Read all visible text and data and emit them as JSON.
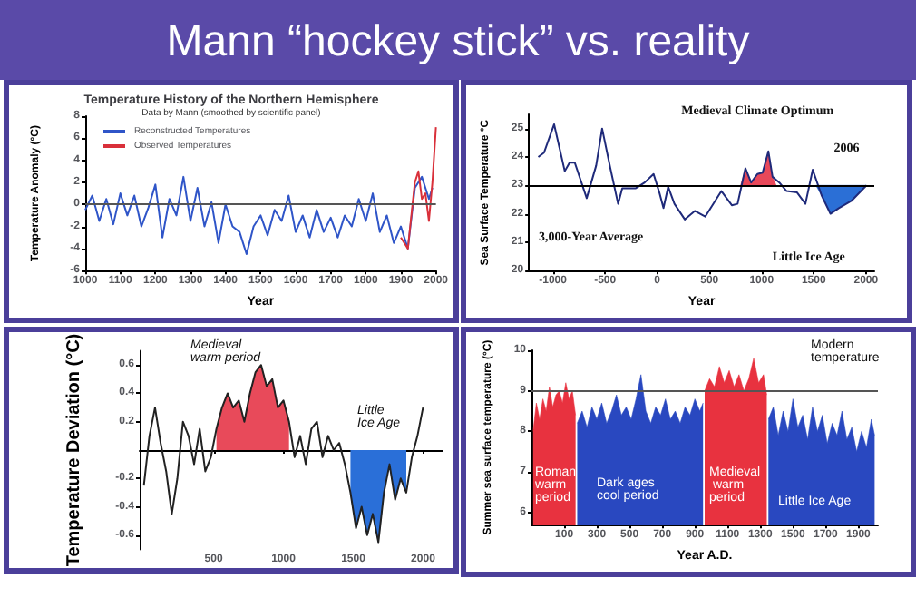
{
  "chart_data": [
    {
      "type": "other",
      "title": "Mann “hockey stick” vs. reality"
    },
    {
      "type": "line",
      "title": "Temperature History of the Northern Hemisphere",
      "subtitle": "Data by Mann (smoothed by scientific panel)",
      "xlabel": "Year",
      "ylabel": "Temperature Anomaly (°C)",
      "legend": "top left",
      "xlim": [
        1000,
        2000
      ],
      "xticks": [
        1000,
        1100,
        1200,
        1300,
        1400,
        1500,
        1600,
        1700,
        1800,
        1900,
        2000
      ],
      "ylim": [
        -6,
        8
      ],
      "yticks": [
        -6,
        -4,
        -2,
        0,
        2,
        4,
        6,
        8
      ],
      "ref_lines": [
        {
          "axis": "y",
          "value": 0,
          "color": "#555555"
        }
      ],
      "series": [
        {
          "name": "Reconstructed Temperatures",
          "color": "#2f55c8",
          "x": [
            1000,
            1020,
            1040,
            1060,
            1080,
            1100,
            1120,
            1140,
            1160,
            1180,
            1200,
            1220,
            1240,
            1260,
            1280,
            1300,
            1320,
            1340,
            1360,
            1380,
            1400,
            1420,
            1440,
            1460,
            1480,
            1500,
            1520,
            1540,
            1560,
            1580,
            1600,
            1620,
            1640,
            1660,
            1680,
            1700,
            1720,
            1740,
            1760,
            1780,
            1800,
            1820,
            1840,
            1860,
            1880,
            1900,
            1920,
            1940,
            1960,
            1980,
            1990
          ],
          "values": [
            -0.5,
            0.8,
            -1.5,
            0.5,
            -1.8,
            1,
            -1,
            0.8,
            -2,
            -0.3,
            1.8,
            -3,
            0.5,
            -1,
            2.5,
            -1.5,
            1.5,
            -2,
            0.2,
            -3.5,
            0,
            -2,
            -2.5,
            -4.5,
            -2,
            -1,
            -2.8,
            -0.5,
            -1.5,
            0.8,
            -2.5,
            -1,
            -3,
            -0.5,
            -2.5,
            -1.2,
            -3,
            -1,
            -2,
            0.5,
            -1.5,
            1,
            -2.5,
            -1,
            -3.5,
            -2,
            -4,
            1.5,
            2.5,
            0.5,
            1.5
          ]
        },
        {
          "name": "Observed Temperatures",
          "color": "#d9303a",
          "x": [
            1900,
            1920,
            1940,
            1950,
            1960,
            1970,
            1980,
            1990,
            2000
          ],
          "values": [
            -3,
            -4,
            2,
            3,
            0.5,
            1,
            -1.5,
            2,
            7
          ]
        }
      ]
    },
    {
      "type": "line",
      "xlabel": "Year",
      "ylabel": "Sea Surface Temperature °C",
      "xlim": [
        -1230,
        2080
      ],
      "xticks": [
        -1000,
        -500,
        0,
        500,
        1000,
        1500,
        2000
      ],
      "ylim": [
        20,
        25.5
      ],
      "yticks": [
        20,
        21,
        22,
        23,
        24,
        25
      ],
      "ref_lines": [
        {
          "axis": "y",
          "value": 23,
          "label": "3,000-Year Average",
          "color": "#000000"
        }
      ],
      "annotations": [
        {
          "text": "Medieval Climate Optimum",
          "x": 1065,
          "y": 24.2
        },
        {
          "text": "Little Ice Age",
          "x": 1660,
          "y": 22.0
        },
        {
          "text": "2006",
          "x": 2006,
          "y": 23
        }
      ],
      "series": [
        {
          "type": "area",
          "color": "#e8485a",
          "x": [
            800,
            845,
            900,
            960,
            1010,
            1065,
            1105,
            1140
          ],
          "values": [
            23,
            23.6,
            23.1,
            23.4,
            23.45,
            24.2,
            23.3,
            23.0
          ]
        },
        {
          "type": "area",
          "color": "#2b6fd6",
          "x": [
            1520,
            1575,
            1660,
            1740,
            1860,
            2006
          ],
          "values": [
            23.0,
            22.65,
            22.0,
            22.2,
            22.45,
            23
          ]
        },
        {
          "type": "line",
          "color": "#1f2a7a",
          "x": [
            -1140,
            -1085,
            -988,
            -886,
            -840,
            -790,
            -676,
            -585,
            -528,
            -449,
            -375,
            -335,
            -205,
            -120,
            -35,
            20,
            60,
            105,
            165,
            265,
            360,
            460,
            615,
            715,
            770,
            845,
            900,
            960,
            1010,
            1065,
            1105,
            1170,
            1240,
            1340,
            1420,
            1490,
            1575,
            1660,
            1740,
            1860,
            2006
          ],
          "values": [
            24.0,
            24.15,
            25.15,
            23.5,
            23.8,
            23.8,
            22.55,
            23.7,
            25.0,
            23.6,
            22.35,
            22.9,
            22.9,
            23.1,
            23.4,
            22.75,
            22.2,
            22.95,
            22.35,
            21.8,
            22.1,
            21.9,
            22.8,
            22.3,
            22.35,
            23.6,
            23.1,
            23.4,
            23.45,
            24.2,
            23.3,
            23.1,
            22.8,
            22.75,
            22.35,
            23.55,
            22.65,
            22.0,
            22.2,
            22.45,
            23
          ]
        }
      ]
    },
    {
      "type": "line",
      "ylabel": "Temperature Deviation (°C)",
      "xlim": [
        -30,
        2140
      ],
      "xticks": [
        500,
        1000,
        1500,
        2000
      ],
      "ylim": [
        -0.7,
        0.7
      ],
      "yticks": [
        -0.6,
        -0.4,
        -0.2,
        0.2,
        0.4,
        0.6
      ],
      "annotations": [
        "Medieval warm period",
        "Little Ice Age"
      ],
      "series": [
        {
          "type": "area",
          "color": "#e84a5a",
          "x": [
            520,
            560,
            600,
            640,
            680,
            720,
            760,
            800,
            840,
            880,
            920,
            960,
            1000,
            1040
          ],
          "values": [
            0.15,
            0.3,
            0.4,
            0.3,
            0.35,
            0.2,
            0.4,
            0.55,
            0.6,
            0.45,
            0.5,
            0.3,
            0.35,
            0.2
          ]
        },
        {
          "type": "area",
          "color": "#2a6fd8",
          "x": [
            1480,
            1520,
            1560,
            1600,
            1640,
            1680,
            1720,
            1760,
            1800,
            1840,
            1880
          ],
          "values": [
            -0.3,
            -0.55,
            -0.4,
            -0.6,
            -0.45,
            -0.65,
            -0.3,
            -0.1,
            -0.35,
            -0.2,
            -0.3
          ]
        },
        {
          "type": "line",
          "color": "#222222",
          "x": [
            0,
            40,
            80,
            120,
            160,
            200,
            240,
            280,
            320,
            360,
            400,
            440,
            480,
            520,
            560,
            600,
            640,
            680,
            720,
            760,
            800,
            840,
            880,
            920,
            960,
            1000,
            1040,
            1080,
            1120,
            1160,
            1200,
            1240,
            1280,
            1320,
            1360,
            1400,
            1440,
            1480,
            1520,
            1560,
            1600,
            1640,
            1680,
            1720,
            1760,
            1800,
            1840,
            1880,
            1920,
            1960,
            2000
          ],
          "values": [
            -0.25,
            0.1,
            0.3,
            0.05,
            -0.15,
            -0.45,
            -0.2,
            0.2,
            0.1,
            -0.1,
            0.15,
            -0.15,
            -0.05,
            0.15,
            0.3,
            0.4,
            0.3,
            0.35,
            0.2,
            0.4,
            0.55,
            0.6,
            0.45,
            0.5,
            0.3,
            0.35,
            0.2,
            -0.05,
            0.1,
            -0.1,
            0.15,
            0.2,
            -0.05,
            0.1,
            0.0,
            0.05,
            -0.1,
            -0.3,
            -0.55,
            -0.4,
            -0.6,
            -0.45,
            -0.65,
            -0.3,
            -0.1,
            -0.35,
            -0.2,
            -0.3,
            -0.05,
            0.1,
            0.3
          ]
        }
      ]
    },
    {
      "type": "area",
      "xlabel": "Year A.D.",
      "ylabel": "Summer sea surface temperature (°C)",
      "xlim": [
        -100,
        2020
      ],
      "xticks": [
        100,
        300,
        500,
        700,
        900,
        1100,
        1300,
        1500,
        1700,
        1900
      ],
      "ylim": [
        5.7,
        10
      ],
      "yticks": [
        6,
        7,
        8,
        9,
        10
      ],
      "ref_lines": [
        {
          "axis": "y",
          "value": 9,
          "label": "Modern temperature",
          "color": "#555555"
        }
      ],
      "annotations": [
        "Roman warm period",
        "Dark ages cool period",
        "Medieval warm period",
        "Little Ice Age"
      ],
      "series": [
        {
          "color": "#e8323f",
          "x": [
            -90,
            -70,
            -50,
            -30,
            -10,
            10,
            30,
            50,
            70,
            90,
            110,
            130,
            150,
            170
          ],
          "values": [
            8.0,
            8.7,
            8.3,
            8.8,
            8.5,
            9.1,
            8.6,
            8.9,
            9.0,
            8.7,
            9.2,
            8.8,
            9.0,
            8.4
          ]
        },
        {
          "color": "#2948c0",
          "x": [
            180,
            210,
            240,
            270,
            300,
            330,
            360,
            390,
            420,
            450,
            480,
            510,
            540,
            570,
            600,
            630,
            660,
            690,
            720,
            750,
            780,
            810,
            840,
            870,
            900,
            930,
            950
          ],
          "values": [
            8.2,
            8.5,
            8.1,
            8.6,
            8.3,
            8.7,
            8.2,
            8.5,
            8.9,
            8.4,
            8.6,
            8.3,
            8.8,
            9.4,
            8.5,
            8.2,
            8.6,
            8.4,
            8.8,
            8.3,
            8.5,
            8.2,
            8.6,
            8.4,
            8.8,
            8.5,
            8.7
          ]
        },
        {
          "color": "#e8323f",
          "x": [
            960,
            990,
            1020,
            1050,
            1080,
            1110,
            1140,
            1170,
            1200,
            1230,
            1260,
            1290,
            1320,
            1340
          ],
          "values": [
            9.0,
            9.3,
            9.1,
            9.6,
            9.2,
            9.5,
            9.1,
            9.4,
            9.0,
            9.3,
            9.8,
            9.2,
            9.4,
            8.9
          ]
        },
        {
          "color": "#2948c0",
          "x": [
            1350,
            1380,
            1410,
            1440,
            1470,
            1500,
            1530,
            1560,
            1590,
            1620,
            1650,
            1680,
            1710,
            1740,
            1770,
            1800,
            1830,
            1860,
            1890,
            1920,
            1950,
            1980,
            2000
          ],
          "values": [
            8.3,
            8.6,
            7.9,
            8.5,
            8.0,
            8.8,
            8.1,
            8.4,
            7.8,
            8.6,
            8.0,
            8.4,
            7.7,
            8.2,
            7.9,
            8.5,
            7.8,
            8.1,
            7.5,
            8.0,
            7.6,
            8.3,
            7.9
          ]
        }
      ]
    }
  ]
}
